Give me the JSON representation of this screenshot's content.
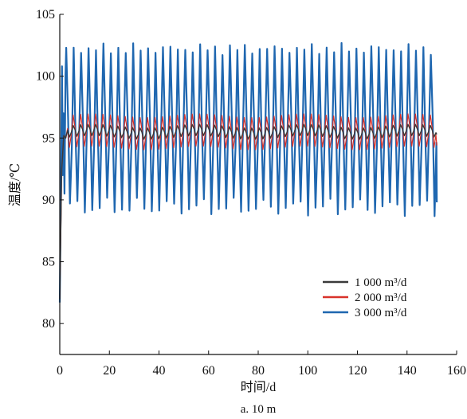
{
  "chart_data": {
    "type": "line",
    "xlabel": "时间/d",
    "ylabel": "温度/℃",
    "caption": "a. 10 m",
    "xlim": [
      0,
      160
    ],
    "ylim": [
      77.5,
      105
    ],
    "xticks": [
      "0",
      "20",
      "40",
      "60",
      "80",
      "100",
      "120",
      "140",
      "160"
    ],
    "yticks": [
      "80",
      "85",
      "90",
      "95",
      "100",
      "105"
    ],
    "grid": false,
    "legend_position": "bottom-right",
    "series": [
      {
        "name": "1 000 m³/d",
        "color": "#3a3a3a",
        "start": 82.0,
        "mean": 95.5,
        "amplitude": 0.45,
        "period_days": 3.0,
        "x_end": 152,
        "end_value": 95.3
      },
      {
        "name": "2 000 m³/d",
        "color": "#d8322a",
        "start": 82.0,
        "mean": 95.5,
        "amplitude": 1.3,
        "period_days": 3.0,
        "x_end": 152,
        "end_value": 94.4
      },
      {
        "name": "3 000 m³/d",
        "color": "#1f67b0",
        "start": 81.7,
        "peak_value": 102.2,
        "trough_value": 89.4,
        "period_days": 3.0,
        "x_end": 152,
        "end_value": 89.8
      }
    ]
  }
}
